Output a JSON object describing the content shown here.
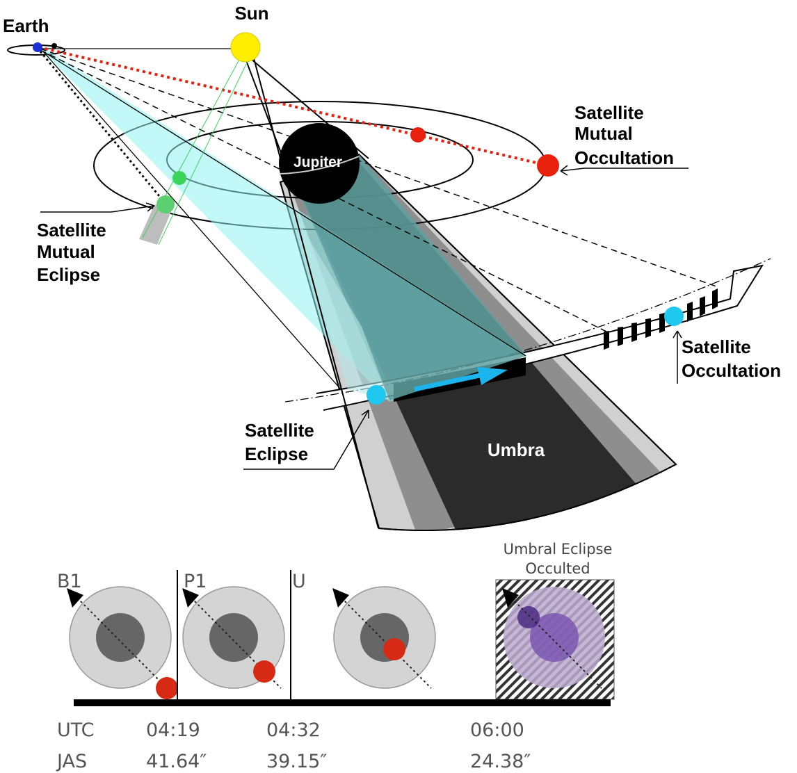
{
  "labels": {
    "earth": "Earth",
    "sun": "Sun",
    "jupiter": "Jupiter",
    "mutual_occultation": [
      "Satellite",
      "Mutual",
      "Occultation"
    ],
    "mutual_eclipse": [
      "Satellite",
      "Mutual",
      "Eclipse"
    ],
    "occultation": [
      "Satellite",
      "Occultation"
    ],
    "eclipse": [
      "Satellite",
      "Eclipse"
    ],
    "umbra": "Umbra"
  },
  "timeline": {
    "contacts": [
      "B1",
      "P1",
      "U"
    ],
    "umbral_caption": [
      "Umbral Eclipse",
      "Occulted"
    ],
    "row_labels": [
      "UTC",
      "JAS"
    ],
    "utc": [
      "04:19",
      "04:32",
      "06:00"
    ],
    "jas": [
      "41.64″",
      "39.15″",
      "24.38″"
    ]
  },
  "colors": {
    "sun": "#ffee00",
    "earth": "#1a2fd6",
    "occulting_moon": "#e8210f",
    "eclipsed_moon": "#39d45a",
    "satellite": "#1ec8ee",
    "shadow_cone": "#aef4f4",
    "umbra": "#2b2b2b",
    "penumbra": "#8a8a8a",
    "outer_penumbra": "#cfcfcf",
    "arrow": "#1cb4ec",
    "umbral_tint": "#6a3ca0"
  }
}
